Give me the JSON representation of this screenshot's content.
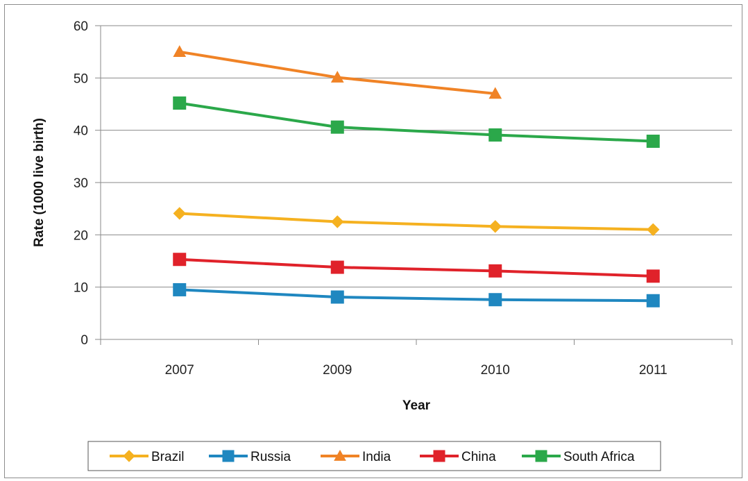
{
  "chart_data": {
    "type": "line",
    "title": "",
    "xlabel": "Year",
    "ylabel": "Rate (1000 live birth)",
    "categories": [
      "2007",
      "2009",
      "2010",
      "2011"
    ],
    "ylim": [
      0,
      60
    ],
    "yticks": [
      0,
      10,
      20,
      30,
      40,
      50,
      60
    ],
    "grid": "horizontal",
    "legend_position": "bottom",
    "series": [
      {
        "name": "Brazil",
        "color": "#F5B120",
        "marker": "diamond",
        "values": [
          24.1,
          22.5,
          21.6,
          21.0
        ]
      },
      {
        "name": "Russia",
        "color": "#1F87C0",
        "marker": "square",
        "values": [
          9.5,
          8.1,
          7.6,
          7.4
        ]
      },
      {
        "name": "India",
        "color": "#F08326",
        "marker": "triangle",
        "values": [
          55.0,
          50.1,
          47.0,
          null
        ]
      },
      {
        "name": "China",
        "color": "#E0222A",
        "marker": "square",
        "values": [
          15.3,
          13.8,
          13.1,
          12.1
        ]
      },
      {
        "name": "South Africa",
        "color": "#2BA84A",
        "marker": "square",
        "values": [
          45.2,
          40.6,
          39.1,
          37.9
        ]
      }
    ]
  }
}
